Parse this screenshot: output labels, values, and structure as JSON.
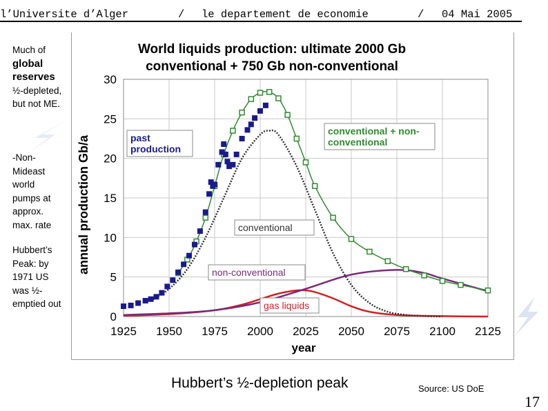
{
  "header": {
    "left": "l’Universite d’Alger",
    "sep1": "/",
    "middle": "le departement de economie",
    "sep2": "/",
    "date": "04 Mai 2005"
  },
  "sidebar": {
    "p1_line1": "Much of",
    "p1_bold1": "global",
    "p1_bold2": "reserves",
    "p1_rest": "½-depleted, but not ME.",
    "p2": "-Non-Mideast world pumps at approx. max. rate",
    "p3": "Hubbert’s Peak: by 1971 US was ½-emptied out"
  },
  "caption": "Hubbert’s ½-depletion peak",
  "source": "Source: US DoE",
  "page_number": "17",
  "colors": {
    "past": "#1a1a8c",
    "total": "#2e8b2e",
    "conventional": "#333333",
    "non_conventional": "#7a2a7a",
    "gas": "#cc2222",
    "title": "#1a1a3a"
  },
  "chart_data": {
    "type": "line",
    "title_line1": "World liquids production: ultimate 2000 Gb",
    "title_line2": "conventional + 750 Gb non-conventional",
    "xlabel": "year",
    "ylabel": "annual production  Gb/a",
    "xlim": [
      1925,
      2125
    ],
    "ylim": [
      0,
      30
    ],
    "xticks": [
      "1925",
      "1950",
      "1975",
      "2000",
      "2025",
      "2050",
      "2075",
      "2100",
      "2125"
    ],
    "yticks": [
      "0",
      "5",
      "10",
      "15",
      "20",
      "25",
      "30"
    ],
    "grid": true,
    "labels": {
      "past": "past production",
      "total": "conventional + non-conventional",
      "conventional": "conventional",
      "non_conventional": "non-conventional",
      "gas": "gas liquids"
    },
    "series": [
      {
        "name": "past production",
        "style": "filled-squares",
        "x": [
          1925,
          1929,
          1933,
          1937,
          1940,
          1943,
          1946,
          1949,
          1952,
          1955,
          1958,
          1961,
          1964,
          1967,
          1970,
          1972,
          1973,
          1974,
          1975,
          1977,
          1979,
          1980,
          1981,
          1982,
          1983,
          1985,
          1987,
          1990,
          1993,
          1995,
          1997,
          2000,
          2003
        ],
        "y": [
          1.3,
          1.4,
          1.7,
          2.0,
          2.2,
          2.5,
          3.0,
          3.8,
          4.6,
          5.6,
          6.6,
          7.7,
          9.1,
          10.8,
          13.2,
          15.5,
          17.0,
          16.5,
          16.7,
          19.2,
          20.8,
          21.8,
          20.5,
          19.6,
          19.0,
          19.2,
          20.5,
          22.5,
          23.6,
          24.3,
          25.1,
          26.0,
          26.7
        ]
      },
      {
        "name": "conventional + non-conventional",
        "style": "open-squares",
        "x": [
          1955,
          1960,
          1965,
          1970,
          1975,
          1980,
          1985,
          1990,
          1995,
          2000,
          2005,
          2010,
          2015,
          2020,
          2025,
          2030,
          2040,
          2050,
          2060,
          2070,
          2080,
          2090,
          2100,
          2110,
          2125
        ],
        "y": [
          5.5,
          7.2,
          9.5,
          12.5,
          16.5,
          20.5,
          23.5,
          25.8,
          27.5,
          28.3,
          28.4,
          27.6,
          25.5,
          22.5,
          19.5,
          16.5,
          12.5,
          9.8,
          8.2,
          7.0,
          6.0,
          5.2,
          4.5,
          4.0,
          3.3
        ]
      },
      {
        "name": "conventional",
        "style": "dotted",
        "x": [
          1940,
          1950,
          1960,
          1970,
          1980,
          1990,
          2000,
          2005,
          2010,
          2020,
          2030,
          2040,
          2050,
          2060,
          2070,
          2080,
          2090,
          2100
        ],
        "y": [
          2.0,
          3.5,
          6.0,
          10.0,
          15.0,
          20.0,
          23.0,
          23.5,
          23.0,
          19.0,
          13.5,
          8.0,
          4.0,
          1.7,
          0.6,
          0.2,
          0.05,
          0.0
        ]
      },
      {
        "name": "non-conventional",
        "style": "solid",
        "x": [
          1925,
          1950,
          1975,
          2000,
          2025,
          2050,
          2075,
          2090,
          2100,
          2125
        ],
        "y": [
          0.2,
          0.4,
          0.8,
          1.8,
          3.5,
          5.3,
          5.9,
          5.5,
          4.8,
          3.2
        ]
      },
      {
        "name": "gas liquids",
        "style": "solid",
        "x": [
          1925,
          1950,
          1975,
          1990,
          2000,
          2010,
          2020,
          2025,
          2030,
          2040,
          2050,
          2060,
          2075,
          2100,
          2125
        ],
        "y": [
          0.1,
          0.3,
          0.8,
          1.5,
          2.2,
          2.9,
          3.3,
          3.3,
          3.1,
          2.3,
          1.3,
          0.6,
          0.2,
          0.05,
          0.0
        ]
      }
    ]
  }
}
